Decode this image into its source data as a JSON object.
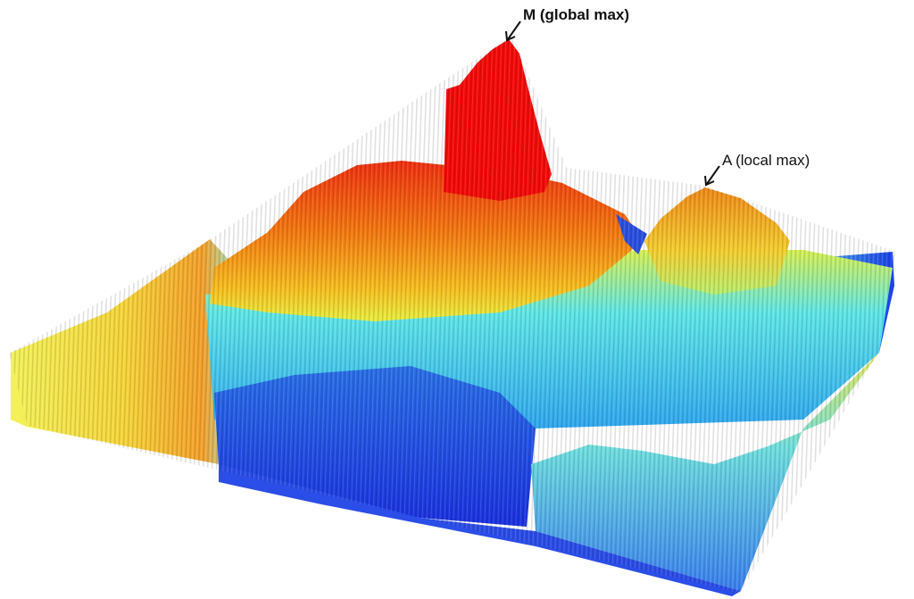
{
  "annotations": [
    "M (global max)",
    "A (local max)"
  ]
}
